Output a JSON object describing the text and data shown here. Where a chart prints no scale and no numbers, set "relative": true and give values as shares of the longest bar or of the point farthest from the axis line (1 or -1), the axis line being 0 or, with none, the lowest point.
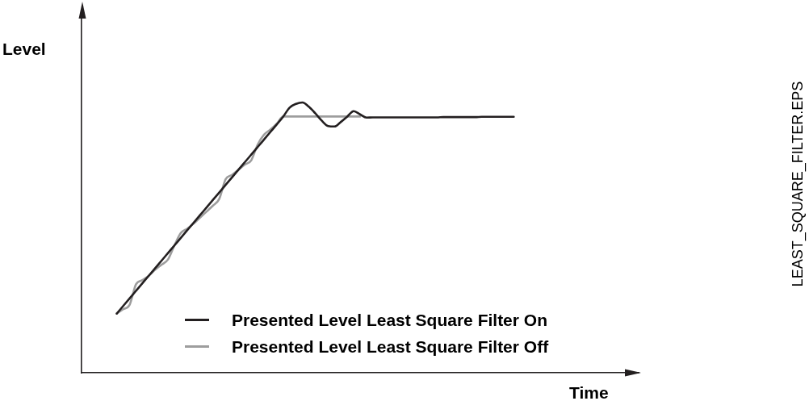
{
  "chart_data": {
    "type": "line",
    "relative": true,
    "xlabel": "Time",
    "ylabel": "Level",
    "annotations": [
      "LEAST_SQUARE_FILTER.EPS"
    ],
    "legend": "bottom",
    "grid": false,
    "marker": "none",
    "line_style": "solid",
    "categories": [
      null,
      null,
      null,
      null,
      null,
      null,
      null,
      null,
      null,
      null,
      null,
      null,
      null,
      null,
      null,
      null,
      null,
      null,
      null,
      null,
      null,
      null,
      null,
      null,
      null,
      null,
      null,
      null,
      null,
      null,
      null,
      null,
      null,
      null,
      null,
      null,
      null,
      null,
      null,
      null,
      null,
      null,
      null,
      null,
      null,
      null,
      null,
      null,
      null,
      null,
      null,
      null,
      null,
      null,
      null,
      null,
      null,
      null,
      null,
      null,
      null,
      null,
      null,
      null,
      null,
      null,
      null,
      null,
      null,
      null,
      null,
      null,
      null,
      null,
      null,
      null,
      null,
      null,
      null,
      null,
      null,
      null,
      null,
      null,
      null,
      null,
      null
    ],
    "series": [
      {
        "name": "Presented Level Least Square Filter On",
        "color": "#231f20",
        "values": [
          null,
          null,
          null,
          null,
          null,
          0.219,
          0.247,
          0.275,
          0.303,
          0.331,
          0.359,
          0.387,
          0.415,
          0.443,
          0.471,
          0.499,
          0.527,
          0.555,
          0.583,
          0.611,
          0.639,
          0.667,
          0.695,
          0.723,
          0.751,
          0.779,
          0.807,
          0.835,
          0.863,
          0.891,
          0.919,
          0.948,
          0.981,
          0.995,
          1.0,
          0.984,
          0.96,
          0.933,
          0.913,
          0.911,
          0.928,
          0.948,
          0.968,
          0.956,
          0.944,
          0.945,
          0.945,
          0.945,
          0.945,
          0.945,
          0.945,
          0.945,
          0.945,
          0.945,
          0.945,
          0.945,
          0.946,
          0.946,
          0.946,
          0.946,
          0.946,
          0.946,
          0.947,
          0.947,
          0.947,
          0.947,
          0.947,
          0.947,
          null,
          null,
          null,
          null,
          null,
          null,
          null,
          null,
          null,
          null,
          null,
          null,
          null,
          null,
          null,
          null,
          null,
          null,
          null
        ]
      },
      {
        "name": "Presented Level Least Square Filter Off",
        "color": "#9d9d9d",
        "values": [
          null,
          null,
          null,
          null,
          null,
          0.219,
          0.235,
          0.251,
          0.327,
          0.343,
          0.359,
          0.381,
          0.4,
          0.419,
          0.471,
          0.517,
          0.533,
          0.552,
          0.574,
          0.596,
          0.618,
          0.643,
          0.716,
          0.732,
          0.751,
          0.77,
          0.786,
          0.844,
          0.881,
          0.9,
          0.922,
          0.948,
          0.948,
          0.948,
          0.948,
          0.948,
          0.948,
          0.948,
          0.948,
          0.948,
          0.948,
          0.948,
          0.948,
          0.948,
          null,
          null,
          null,
          null,
          null,
          null,
          null,
          null,
          null,
          null,
          null,
          null,
          null,
          null,
          null,
          null,
          null,
          null,
          null,
          null,
          null,
          null,
          null,
          null,
          null,
          null,
          null,
          null,
          null,
          null,
          null,
          null,
          null,
          null,
          null,
          null,
          null,
          null,
          null,
          null,
          null,
          null,
          null
        ]
      }
    ]
  }
}
